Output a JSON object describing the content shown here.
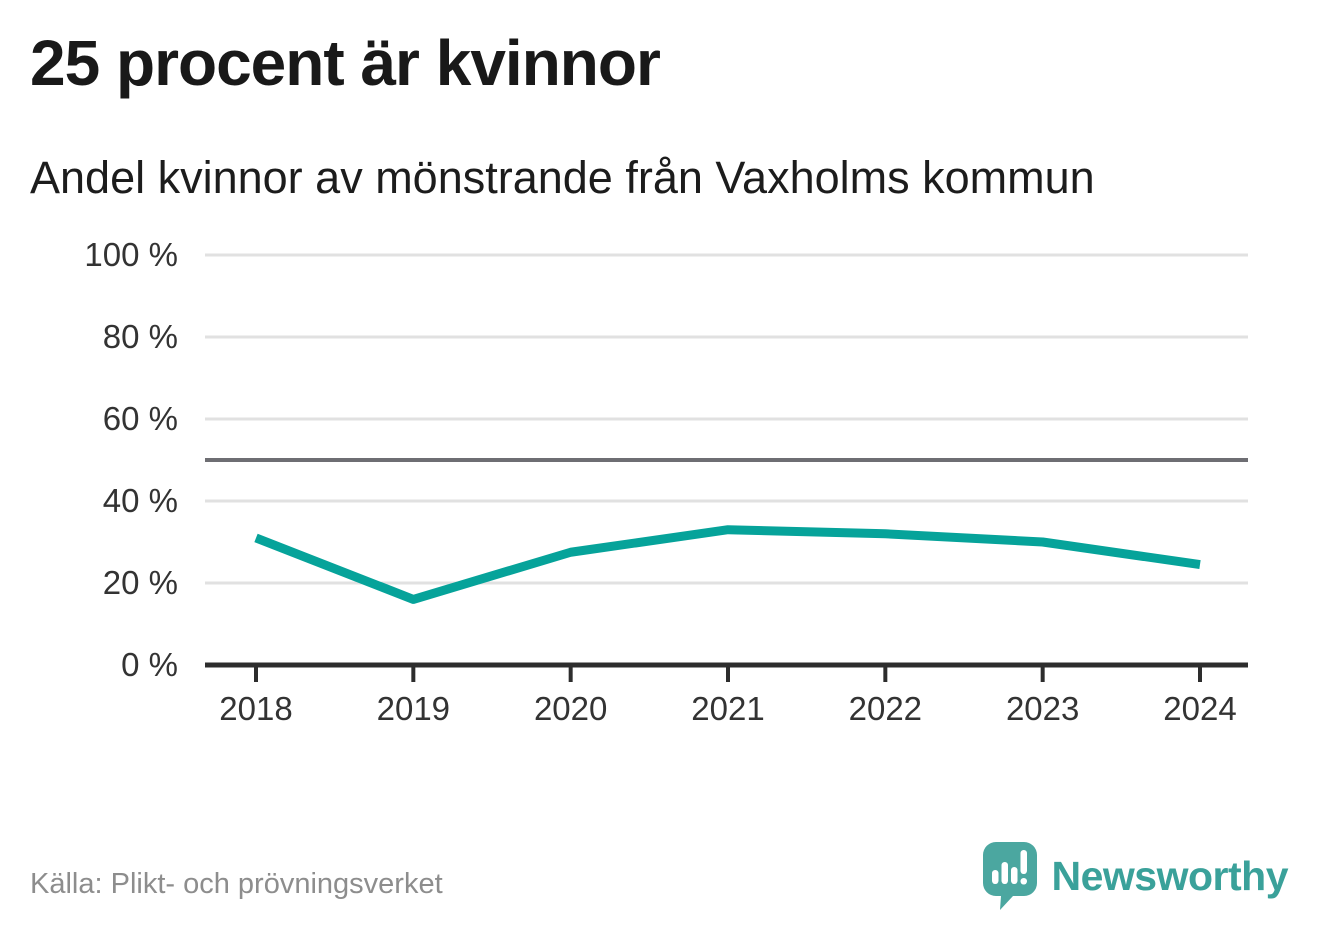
{
  "header": {
    "title": "25 procent är kvinnor",
    "subtitle": "Andel kvinnor av mönstrande från Vaxholms kommun"
  },
  "chart_data": {
    "type": "line",
    "title": "25 procent är kvinnor",
    "subtitle": "Andel kvinnor av mönstrande från Vaxholms kommun",
    "x": [
      2018,
      2019,
      2020,
      2021,
      2022,
      2023,
      2024
    ],
    "x_labels": [
      "2018",
      "2019",
      "2020",
      "2021",
      "2022",
      "2023",
      "2024"
    ],
    "series": [
      {
        "name": "Andel kvinnor av mönstrande",
        "values": [
          31,
          16,
          27.5,
          33,
          32,
          30,
          24.5
        ]
      }
    ],
    "xlabel": "",
    "ylabel": "",
    "ylim": [
      0,
      100
    ],
    "yticks": [
      0,
      20,
      40,
      60,
      80,
      100
    ],
    "ytick_labels": [
      "0 %",
      "20 %",
      "40 %",
      "60 %",
      "80 %",
      "100 %"
    ],
    "reference_line": 50,
    "grid": true,
    "legend": false,
    "line_color": "#06a39a"
  },
  "footer": {
    "source": "Källa: Plikt- och prövningsverket",
    "brand": "Newsworthy"
  },
  "colors": {
    "accent": "#06a39a",
    "grid": "#e1e1e1",
    "reference": "#6e6e73",
    "axis": "#2d2d2d",
    "tick_label": "#333333",
    "logo": "#4ba7a0",
    "logo_text": "#3aa19a"
  }
}
